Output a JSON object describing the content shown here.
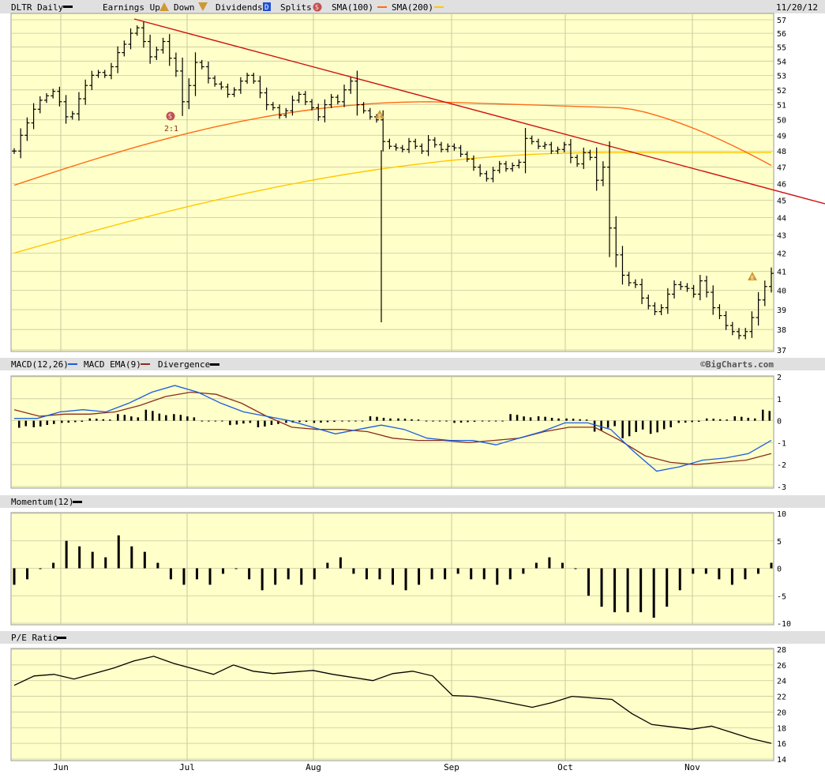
{
  "header": {
    "symbol_label": "DLTR Daily",
    "earnings_up_label": "Earnings Up",
    "down_label": "Down",
    "dividends_label": "Dividends",
    "dividends_icon": "D",
    "splits_label": "Splits",
    "splits_icon": "S",
    "sma100_label": "SMA(100)",
    "sma200_label": "SMA(200)",
    "date": "11/20/12"
  },
  "colors": {
    "plot_bg": "#ffffc9",
    "band_bg": "#e0e0e0",
    "grid": "#c8c8a0",
    "trendline": "#cc1111",
    "sma100": "#ff6a14",
    "sma200": "#ffc800",
    "macd": "#1a5ce0",
    "macd_ema": "#8b2c1c",
    "bars": "#000000",
    "earnings": "#cc9933",
    "split": "#c05050",
    "dividend": "#1f4fd0"
  },
  "macd_header": {
    "label": "MACD(12,26)",
    "ema_label": "MACD EMA(9)",
    "divergence_label": "Divergence",
    "credit": "©BigCharts.com"
  },
  "momentum_header": {
    "label": "Momentum(12)"
  },
  "pe_header": {
    "label": "P/E Ratio"
  },
  "annotations": {
    "split_marker": "S",
    "split_text": "2:1",
    "earnings_marker": "E"
  },
  "chart_data": [
    {
      "type": "bar",
      "subtype": "ohlc",
      "name": "DLTR Daily",
      "x_ticks": [
        "Jun",
        "Jul",
        "Aug",
        "Sep",
        "Oct",
        "Nov"
      ],
      "y_ticks": [
        37,
        38,
        39,
        40,
        41,
        42,
        43,
        44,
        45,
        46,
        47,
        48,
        49,
        50,
        51,
        52,
        53,
        54,
        55,
        56,
        57
      ],
      "ylim": [
        36.8,
        57.4
      ],
      "y_scale": "log",
      "closes": [
        48.0,
        49.0,
        49.8,
        50.7,
        51.3,
        51.6,
        51.9,
        51.2,
        50.2,
        50.4,
        51.4,
        52.3,
        53.0,
        53.2,
        53.0,
        53.6,
        54.6,
        55.2,
        56.0,
        56.4,
        55.4,
        54.3,
        54.8,
        55.4,
        54.2,
        53.3,
        51.2,
        52.3,
        53.9,
        53.6,
        52.8,
        52.4,
        52.2,
        51.7,
        52.0,
        52.6,
        53.0,
        52.6,
        51.8,
        51.0,
        50.8,
        50.3,
        50.6,
        51.3,
        51.7,
        51.2,
        50.8,
        50.2,
        51.0,
        51.5,
        51.2,
        52.0,
        52.6,
        51.0,
        50.6,
        50.2,
        50.0,
        48.6,
        48.3,
        48.2,
        48.1,
        48.6,
        48.3,
        48.0,
        48.7,
        48.4,
        48.1,
        48.3,
        48.2,
        47.8,
        47.5,
        47.0,
        46.6,
        46.3,
        46.8,
        47.2,
        46.9,
        47.1,
        47.3,
        48.8,
        48.6,
        48.3,
        48.4,
        48.0,
        48.1,
        48.4,
        47.6,
        47.2,
        47.9,
        47.6,
        46.2,
        47.0,
        43.4,
        41.9,
        40.8,
        40.4,
        40.3,
        39.6,
        39.2,
        38.9,
        39.1,
        39.8,
        40.3,
        40.2,
        40.1,
        39.8,
        40.5,
        39.9,
        39.1,
        38.7,
        38.2,
        37.9,
        37.7,
        37.9,
        38.6,
        39.5,
        40.2,
        40.9
      ],
      "sma100": {
        "start": 45.9,
        "end": 47.1
      },
      "sma200": {
        "start": 42.0,
        "end": 47.9
      },
      "trendline": {
        "from_date": "Jun 19",
        "from_value": 56.8,
        "to_date": "11/20/12",
        "to_value": 45.7
      },
      "split": {
        "ratio": "2:1",
        "month": "Jun"
      },
      "earnings": [
        "Aug",
        "Nov"
      ]
    },
    {
      "type": "line",
      "name": "MACD(12,26)",
      "y_ticks": [
        2,
        1,
        0,
        -1,
        -2,
        -3
      ],
      "ylim": [
        -3,
        2
      ],
      "series": [
        {
          "name": "MACD(12,26)",
          "values": [
            0.1,
            0.1,
            0.4,
            0.5,
            0.4,
            0.8,
            1.3,
            1.6,
            1.3,
            0.8,
            0.4,
            0.2,
            0.0,
            -0.3,
            -0.6,
            -0.4,
            -0.2,
            -0.4,
            -0.8,
            -0.9,
            -0.9,
            -1.1,
            -0.8,
            -0.5,
            -0.1,
            -0.1,
            -0.4,
            -1.4,
            -2.3,
            -2.1,
            -1.8,
            -1.7,
            -1.5,
            -0.9
          ]
        },
        {
          "name": "MACD EMA(9)",
          "values": [
            0.5,
            0.2,
            0.3,
            0.3,
            0.4,
            0.7,
            1.1,
            1.3,
            1.2,
            0.8,
            0.2,
            -0.3,
            -0.4,
            -0.4,
            -0.5,
            -0.8,
            -0.9,
            -0.9,
            -1.0,
            -0.9,
            -0.8,
            -0.5,
            -0.3,
            -0.3,
            -0.9,
            -1.6,
            -1.9,
            -2.0,
            -1.9,
            -1.8,
            -1.5
          ]
        }
      ],
      "divergence": [
        -0.5,
        -0.3,
        -0.1,
        0.1,
        0.3,
        0.5,
        0.3,
        0.0,
        -0.2,
        -0.3,
        -0.1,
        -0.1,
        0.0,
        0.2,
        0.1,
        0.0,
        -0.1,
        0.0,
        0.3,
        0.2,
        0.1,
        -0.5,
        -0.8,
        -0.6,
        -0.1,
        0.1,
        0.2,
        0.5
      ]
    },
    {
      "type": "bar",
      "name": "Momentum(12)",
      "y_ticks": [
        10,
        5,
        0,
        -5,
        -10
      ],
      "ylim": [
        -10,
        10
      ],
      "values": [
        -3,
        -2,
        0,
        1,
        5,
        4,
        3,
        2,
        6,
        4,
        3,
        1,
        -2,
        -3,
        -2,
        -3,
        -1,
        0,
        -2,
        -4,
        -3,
        -2,
        -3,
        -2,
        1,
        2,
        -1,
        -2,
        -2,
        -3,
        -4,
        -3,
        -2,
        -2,
        -1,
        -2,
        -2,
        -3,
        -2,
        -1,
        1,
        2,
        1,
        0,
        -5,
        -7,
        -8,
        -8,
        -8,
        -9,
        -7,
        -4,
        -1,
        -1,
        -2,
        -3,
        -2,
        -1,
        1
      ]
    },
    {
      "type": "line",
      "name": "P/E Ratio",
      "y_ticks": [
        28,
        26,
        24,
        22,
        20,
        18,
        16,
        14
      ],
      "ylim": [
        14,
        28
      ],
      "values": [
        23.4,
        24.6,
        24.8,
        24.2,
        24.9,
        25.6,
        26.5,
        27.1,
        26.2,
        25.5,
        24.8,
        26.0,
        25.2,
        24.9,
        25.1,
        25.3,
        24.8,
        24.4,
        24.0,
        24.9,
        25.2,
        24.6,
        22.1,
        22.0,
        21.6,
        21.1,
        20.6,
        21.2,
        22.0,
        21.8,
        21.6,
        19.8,
        18.4,
        18.1,
        17.8,
        18.2,
        17.4,
        16.6,
        16.0
      ]
    }
  ]
}
